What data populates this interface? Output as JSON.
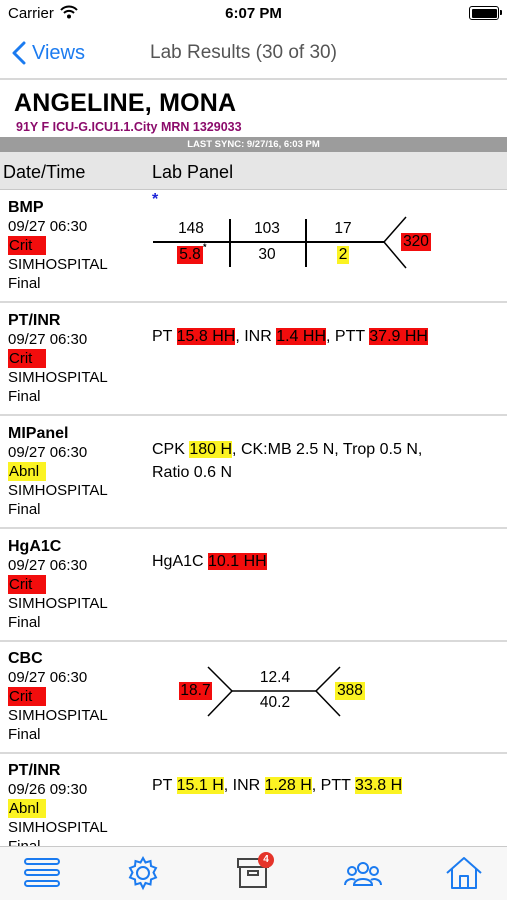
{
  "status_bar": {
    "carrier": "Carrier",
    "time": "6:07 PM"
  },
  "nav": {
    "back_label": "Views",
    "title": "Lab Results (30 of 30)"
  },
  "patient": {
    "name": "ANGELINE, MONA",
    "info": "91Y F ICU-G.ICU1.1.City MRN 1329033",
    "last_sync": "LAST SYNC: 9/27/16, 6:03 PM"
  },
  "columns": {
    "date_time": "Date/Time",
    "lab_panel": "Lab Panel"
  },
  "rows": [
    {
      "name": "BMP",
      "datetime": "09/27 06:30",
      "status": "Crit",
      "source": "SIMHOSPITAL",
      "result": "Final",
      "bmp": {
        "marker": "*",
        "na": "148",
        "cl": "103",
        "bun": "17",
        "k": "5.8",
        "k_mark": "*",
        "co2": "30",
        "cr": "2",
        "glu": "320"
      }
    },
    {
      "name": "PT/INR",
      "datetime": "09/27 06:30",
      "status": "Crit",
      "source": "SIMHOSPITAL",
      "result": "Final",
      "parts": [
        {
          "label": "PT ",
          "value": "15.8 HH",
          "sep": ", "
        },
        {
          "label": "INR ",
          "value": "1.4 HH",
          "sep": ", "
        },
        {
          "label": "PTT ",
          "value": "37.9 HH",
          "sep": ""
        }
      ]
    },
    {
      "name": "MIPanel",
      "datetime": "09/27 06:30",
      "status": "Abnl",
      "source": "SIMHOSPITAL",
      "result": "Final",
      "line1_label": "CPK ",
      "line1_value": "180 H",
      "line1_rest": ", CK:MB 2.5 N, Trop 0.5 N,",
      "line2": "Ratio 0.6 N"
    },
    {
      "name": "HgA1C",
      "datetime": "09/27 06:30",
      "status": "Crit",
      "source": "SIMHOSPITAL",
      "result": "Final",
      "label": "HgA1C ",
      "value": "10.1 HH"
    },
    {
      "name": "CBC",
      "datetime": "09/27 06:30",
      "status": "Crit",
      "source": "SIMHOSPITAL",
      "result": "Final",
      "cbc": {
        "wbc": "18.7",
        "hgb": "12.4",
        "hct": "40.2",
        "plt": "388"
      }
    },
    {
      "name": "PT/INR",
      "datetime": "09/26 09:30",
      "status": "Abnl",
      "source": "SIMHOSPITAL",
      "result": "Final",
      "parts": [
        {
          "label": "PT ",
          "value": "15.1 H",
          "sep": ", "
        },
        {
          "label": "INR ",
          "value": "1.28 H",
          "sep": ", "
        },
        {
          "label": "PTT ",
          "value": "33.8 H",
          "sep": ""
        }
      ]
    }
  ],
  "tab_bar": {
    "items": [
      {
        "icon": "menu-icon"
      },
      {
        "icon": "gear-icon"
      },
      {
        "icon": "inbox-icon",
        "badge": "4"
      },
      {
        "icon": "team-icon"
      },
      {
        "icon": "home-icon"
      }
    ]
  },
  "colors": {
    "accent": "#1b7bf0",
    "critical": "#f20d0d",
    "abnormal": "#fbf322",
    "patient_info": "#8b0b6b"
  }
}
